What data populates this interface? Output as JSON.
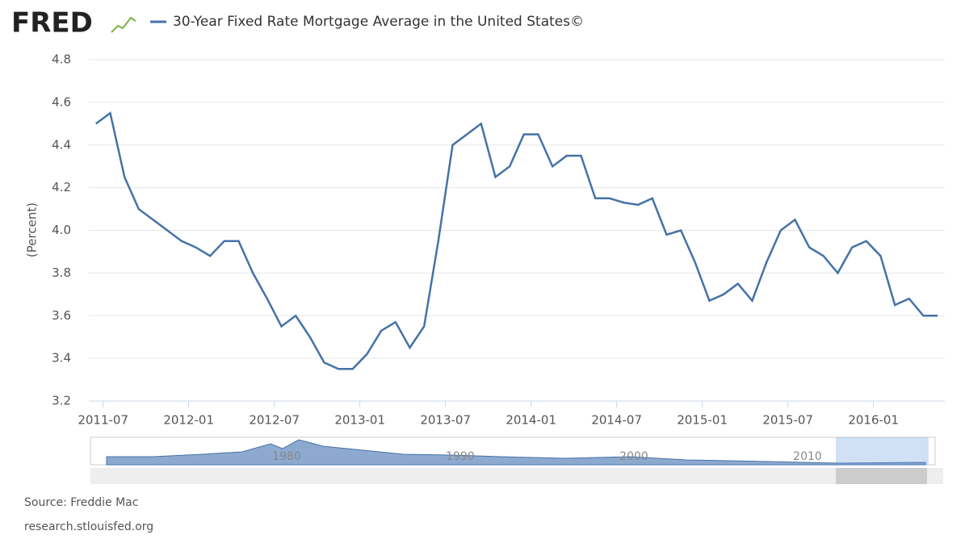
{
  "logo": "FRED",
  "chart_data": {
    "type": "line",
    "ylabel": "(Percent)",
    "x": [
      "2011-06",
      "2011-07",
      "2011-08",
      "2011-09",
      "2011-10",
      "2011-11",
      "2011-12",
      "2012-01",
      "2012-02",
      "2012-03",
      "2012-04",
      "2012-05",
      "2012-06",
      "2012-07",
      "2012-08",
      "2012-09",
      "2012-10",
      "2012-11",
      "2012-12",
      "2013-01",
      "2013-02",
      "2013-03",
      "2013-04",
      "2013-05",
      "2013-06",
      "2013-07",
      "2013-08",
      "2013-09",
      "2013-10",
      "2013-11",
      "2013-12",
      "2014-01",
      "2014-02",
      "2014-03",
      "2014-04",
      "2014-05",
      "2014-06",
      "2014-07",
      "2014-08",
      "2014-09",
      "2014-10",
      "2014-11",
      "2014-12",
      "2015-01",
      "2015-02",
      "2015-03",
      "2015-04",
      "2015-05",
      "2015-06",
      "2015-07",
      "2015-08",
      "2015-09",
      "2015-10",
      "2015-11",
      "2015-12",
      "2016-01",
      "2016-02",
      "2016-03",
      "2016-04",
      "2016-05"
    ],
    "series": [
      {
        "name": "30-Year Fixed Rate Mortgage Average in the United States©",
        "color": "#4572a7",
        "values": [
          4.5,
          4.55,
          4.25,
          4.1,
          4.05,
          4.0,
          3.95,
          3.92,
          3.88,
          3.95,
          3.95,
          3.8,
          3.68,
          3.55,
          3.6,
          3.5,
          3.38,
          3.35,
          3.35,
          3.42,
          3.53,
          3.57,
          3.45,
          3.55,
          3.95,
          4.4,
          4.45,
          4.5,
          4.25,
          4.3,
          4.45,
          4.45,
          4.3,
          4.35,
          4.35,
          4.15,
          4.15,
          4.13,
          4.12,
          4.15,
          3.98,
          4.0,
          3.85,
          3.67,
          3.7,
          3.75,
          3.67,
          3.85,
          4.0,
          4.05,
          3.92,
          3.88,
          3.8,
          3.92,
          3.95,
          3.88,
          3.65,
          3.68,
          3.6,
          3.6
        ]
      }
    ],
    "xlim": [
      "2011-06",
      "2016-06"
    ],
    "xticks": [
      "2011-07",
      "2012-01",
      "2012-07",
      "2013-01",
      "2013-07",
      "2014-01",
      "2014-07",
      "2015-01",
      "2015-07",
      "2016-01"
    ],
    "ylim": [
      3.2,
      4.8
    ],
    "yticks": [
      3.2,
      3.4,
      3.6,
      3.8,
      {
        "value": 4,
        "label": "4.0"
      },
      4.2,
      4.4,
      4.6,
      4.8
    ],
    "grid": true,
    "navigator_labels": [
      "1980",
      "1990",
      "2000",
      "2010"
    ],
    "source": "Source: Freddie Mac",
    "url": "research.stlouisfed.org"
  }
}
